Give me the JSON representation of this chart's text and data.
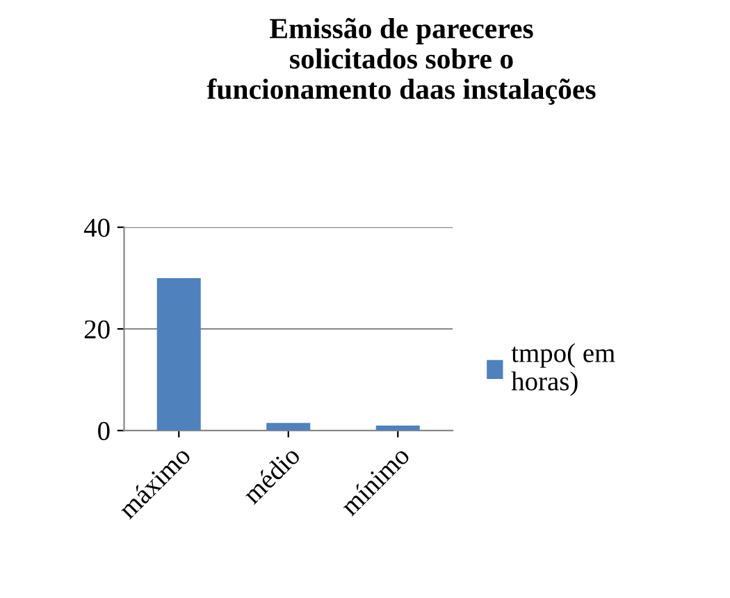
{
  "chart_data": {
    "type": "bar",
    "title": "Emissão de pareceres\nsolicitados sobre o\nfuncionamento daas instalações",
    "categories": [
      "máximo",
      "médio",
      "mínimo"
    ],
    "series": [
      {
        "name": "tmpo( em\nhoras)",
        "color": "#4f81bd",
        "values": [
          30,
          1.5,
          1
        ]
      }
    ],
    "ylim": [
      0,
      40
    ],
    "yticks": [
      0,
      20,
      40
    ],
    "grid": "y",
    "legend": "right"
  }
}
